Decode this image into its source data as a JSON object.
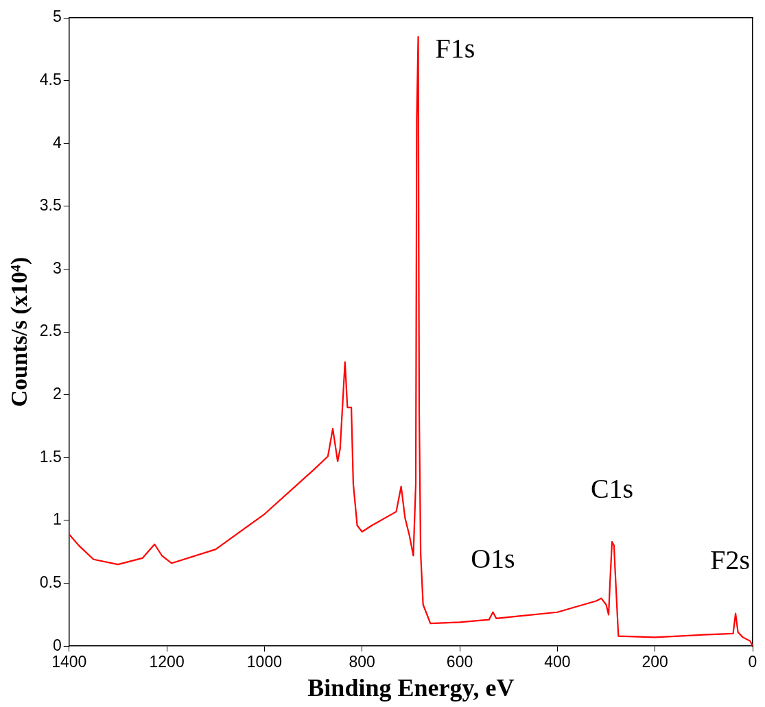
{
  "chart_data": {
    "type": "line",
    "xlabel": "Binding Energy, eV",
    "ylabel": "Counts/s (x10⁴)",
    "xlim": [
      1400,
      0
    ],
    "xticks": [
      1400,
      1200,
      1000,
      800,
      600,
      400,
      200,
      0
    ],
    "ylim": [
      0,
      5
    ],
    "yticks": [
      0,
      0.5,
      1,
      1.5,
      2,
      2.5,
      3,
      3.5,
      4,
      4.5,
      5
    ],
    "grid": false,
    "legend": false,
    "marker": "none",
    "line_style": "solid",
    "series": [
      {
        "color": "#ff0000",
        "x": [
          1400,
          1380,
          1350,
          1300,
          1250,
          1225,
          1210,
          1190,
          1100,
          1000,
          900,
          870,
          860,
          850,
          845,
          835,
          830,
          822,
          818,
          810,
          800,
          780,
          730,
          720,
          712,
          703,
          695,
          690,
          688,
          685,
          683,
          680,
          675,
          660,
          600,
          540,
          532,
          525,
          400,
          320,
          310,
          300,
          295,
          292,
          288,
          284,
          282,
          275,
          200,
          100,
          40,
          35,
          30,
          20,
          5,
          0
        ],
        "values": [
          0.89,
          0.8,
          0.69,
          0.65,
          0.7,
          0.81,
          0.72,
          0.66,
          0.77,
          1.05,
          1.4,
          1.51,
          1.73,
          1.47,
          1.57,
          2.26,
          1.9,
          1.9,
          1.29,
          0.96,
          0.91,
          0.96,
          1.07,
          1.27,
          1.02,
          0.88,
          0.72,
          1.29,
          4.2,
          4.85,
          1.87,
          0.74,
          0.33,
          0.18,
          0.19,
          0.21,
          0.27,
          0.22,
          0.27,
          0.36,
          0.38,
          0.33,
          0.25,
          0.52,
          0.83,
          0.8,
          0.63,
          0.08,
          0.07,
          0.09,
          0.1,
          0.26,
          0.11,
          0.07,
          0.04,
          0
        ]
      }
    ],
    "annotations": [
      {
        "text": "F1s",
        "x": 685,
        "y": 4.85
      },
      {
        "text": "O1s",
        "x": 532,
        "y": 0.27
      },
      {
        "text": "C1s",
        "x": 288,
        "y": 0.83
      },
      {
        "text": "F2s",
        "x": 35,
        "y": 0.26
      }
    ]
  }
}
